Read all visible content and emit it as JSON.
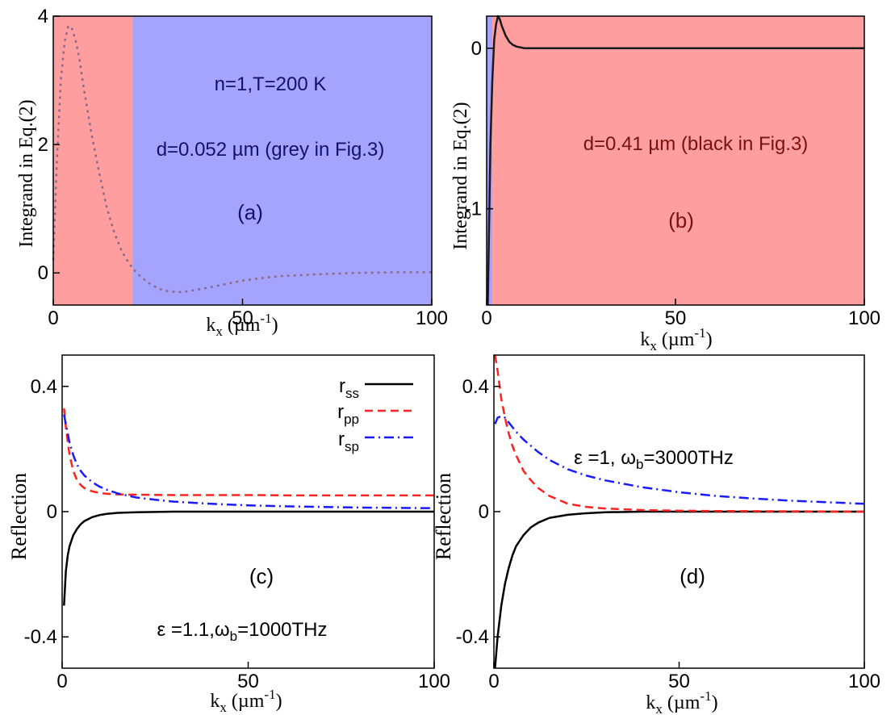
{
  "chart_data": [
    {
      "panel_label": "(a)",
      "type": "line",
      "xlabel_main": "k",
      "xlabel_sub": "x",
      "xlabel_unit": " (µm",
      "xlabel_exp": "-1",
      "xlabel_close": ")",
      "ylabel": "Integrand in Eq.(2)",
      "xlim": [
        0,
        100
      ],
      "ylim": [
        -0.5,
        4
      ],
      "xticks": [
        "0",
        "50",
        "100"
      ],
      "xtick_values": [
        0,
        50,
        100
      ],
      "yticks": [
        "0",
        "2",
        "4"
      ],
      "ytick_values": [
        0,
        2,
        4
      ],
      "annotations": [
        "n=1,T=200 K",
        "d=0.052 µm (grey in Fig.3)"
      ],
      "regions": [
        {
          "x_from": 0,
          "x_to": 21,
          "color": "#ff9e9e"
        },
        {
          "x_from": 21,
          "x_to": 100,
          "color": "#a4a4ff"
        }
      ],
      "series": [
        {
          "color": "#8a6a8a",
          "dash": "dotted",
          "x": [
            0,
            1,
            2,
            3,
            4,
            5,
            6,
            7,
            8,
            10,
            12,
            14,
            16,
            18,
            20,
            22,
            25,
            28,
            30,
            33,
            35,
            40,
            45,
            50,
            55,
            60,
            70,
            80,
            90,
            100
          ],
          "y": [
            0.2,
            1.8,
            3.0,
            3.6,
            3.85,
            3.8,
            3.6,
            3.3,
            2.9,
            2.2,
            1.6,
            1.05,
            0.65,
            0.35,
            0.15,
            0.0,
            -0.15,
            -0.25,
            -0.28,
            -0.3,
            -0.29,
            -0.24,
            -0.18,
            -0.12,
            -0.08,
            -0.05,
            -0.02,
            0.0,
            0.01,
            0.01
          ]
        }
      ]
    },
    {
      "panel_label": "(b)",
      "type": "line",
      "xlabel_main": "k",
      "xlabel_sub": "x",
      "xlabel_unit": " (µm",
      "xlabel_exp": "-1",
      "xlabel_close": ")",
      "ylabel": "Integrand in Eq.(2)",
      "xlim": [
        0,
        100
      ],
      "ylim": [
        -1.6,
        0.2
      ],
      "xticks": [
        "0",
        "50",
        "100"
      ],
      "xtick_values": [
        0,
        50,
        100
      ],
      "yticks": [
        "-1",
        "0"
      ],
      "ytick_values": [
        -1,
        0
      ],
      "annotations": [
        "d=0.41 µm (black in Fig.3)"
      ],
      "regions": [
        {
          "x_from": 0,
          "x_to": 1.5,
          "color": "#a4a4ff"
        },
        {
          "x_from": 1.5,
          "x_to": 100,
          "color": "#ff9e9e"
        }
      ],
      "series": [
        {
          "color": "#1a1a1a",
          "dash": "solid",
          "x": [
            0.3,
            1,
            1.5,
            2,
            2.5,
            3,
            3.5,
            4,
            5,
            6,
            7,
            8,
            9,
            10,
            12,
            15,
            20,
            30,
            50,
            70,
            100
          ],
          "y": [
            -1.6,
            -0.6,
            -0.2,
            0.05,
            0.15,
            0.2,
            0.18,
            0.14,
            0.08,
            0.04,
            0.02,
            0.01,
            0.005,
            0.0,
            0.0,
            0.0,
            0.0,
            0.0,
            0.0,
            0.0,
            0.0
          ]
        }
      ]
    },
    {
      "panel_label": "(c)",
      "type": "line",
      "xlabel_main": "k",
      "xlabel_sub": "x",
      "xlabel_unit": " (µm",
      "xlabel_exp": "-1",
      "xlabel_close": ")",
      "ylabel": "Reflection",
      "xlim": [
        0,
        100
      ],
      "ylim": [
        -0.5,
        0.5
      ],
      "xticks": [
        "0",
        "50",
        "100"
      ],
      "xtick_values": [
        0,
        50,
        100
      ],
      "yticks": [
        "-0.4",
        "0",
        "0.4"
      ],
      "ytick_values": [
        -0.4,
        0,
        0.4
      ],
      "annotation_eps": "ε =1.1,ω",
      "annotation_sub": "b",
      "annotation_rest": "=1000THz",
      "legend_position": "top-right",
      "series": [
        {
          "name_main": "r",
          "name_sub": "ss",
          "color": "#000000",
          "dash": "solid",
          "x": [
            0.5,
            1,
            1.5,
            2,
            3,
            4,
            5,
            6,
            8,
            10,
            12,
            15,
            20,
            25,
            30,
            40,
            50,
            60,
            80,
            100
          ],
          "y": [
            -0.3,
            -0.19,
            -0.14,
            -0.11,
            -0.075,
            -0.055,
            -0.04,
            -0.03,
            -0.018,
            -0.011,
            -0.007,
            -0.004,
            -0.002,
            -0.001,
            0.0,
            0.0,
            0.0,
            0.0,
            0.0,
            0.0
          ]
        },
        {
          "name_main": "r",
          "name_sub": "pp",
          "color": "#ff2020",
          "dash": "dashed",
          "x": [
            0.5,
            1,
            2,
            3,
            4,
            5,
            6,
            8,
            10,
            12,
            15,
            20,
            30,
            40,
            50,
            60,
            80,
            100
          ],
          "y": [
            0.33,
            0.27,
            0.18,
            0.13,
            0.1,
            0.085,
            0.075,
            0.065,
            0.06,
            0.057,
            0.055,
            0.054,
            0.053,
            0.053,
            0.053,
            0.052,
            0.052,
            0.052
          ]
        },
        {
          "name_main": "r",
          "name_sub": "sp",
          "color": "#1a1aff",
          "dash": "dashdot",
          "x": [
            0.5,
            1,
            2,
            3,
            4,
            5,
            6,
            8,
            10,
            12,
            15,
            20,
            25,
            30,
            40,
            50,
            60,
            70,
            80,
            90,
            100
          ],
          "y": [
            0.31,
            0.28,
            0.22,
            0.18,
            0.15,
            0.13,
            0.115,
            0.095,
            0.08,
            0.07,
            0.058,
            0.045,
            0.038,
            0.032,
            0.025,
            0.02,
            0.017,
            0.015,
            0.013,
            0.012,
            0.011
          ]
        }
      ]
    },
    {
      "panel_label": "(d)",
      "type": "line",
      "xlabel_main": "k",
      "xlabel_sub": "x",
      "xlabel_unit": " (µm",
      "xlabel_exp": "-1",
      "xlabel_close": ")",
      "ylabel": "Reflection",
      "xlim": [
        0,
        100
      ],
      "ylim": [
        -0.5,
        0.5
      ],
      "xticks": [
        "0",
        "50",
        "100"
      ],
      "xtick_values": [
        0,
        50,
        100
      ],
      "yticks": [
        "-0.4",
        "0",
        "0.4"
      ],
      "ytick_values": [
        -0.4,
        0,
        0.4
      ],
      "annotation_eps": "ε =1, ω",
      "annotation_sub": "b",
      "annotation_rest": "=3000THz",
      "series": [
        {
          "color": "#000000",
          "dash": "solid",
          "x": [
            0.3,
            1,
            2,
            3,
            4,
            5,
            6,
            8,
            10,
            12,
            15,
            20,
            25,
            30,
            40,
            50,
            60,
            80,
            100
          ],
          "y": [
            -0.5,
            -0.4,
            -0.3,
            -0.23,
            -0.18,
            -0.14,
            -0.11,
            -0.075,
            -0.05,
            -0.035,
            -0.02,
            -0.01,
            -0.005,
            -0.002,
            0.0,
            0.0,
            0.0,
            0.0,
            0.0
          ]
        },
        {
          "color": "#ff2020",
          "dash": "dashed",
          "x": [
            0.3,
            1,
            2,
            3,
            4,
            5,
            6,
            8,
            10,
            12,
            15,
            20,
            25,
            30,
            40,
            50,
            60,
            80,
            100
          ],
          "y": [
            0.52,
            0.45,
            0.36,
            0.3,
            0.25,
            0.21,
            0.18,
            0.13,
            0.1,
            0.075,
            0.05,
            0.025,
            0.015,
            0.01,
            0.005,
            0.003,
            0.002,
            0.001,
            0.0
          ]
        },
        {
          "color": "#1a1aff",
          "dash": "dashdot",
          "x": [
            0.3,
            1,
            2,
            3,
            4,
            5,
            6,
            8,
            10,
            12,
            15,
            20,
            25,
            30,
            40,
            50,
            60,
            70,
            80,
            90,
            100
          ],
          "y": [
            0.28,
            0.3,
            0.305,
            0.3,
            0.285,
            0.27,
            0.255,
            0.23,
            0.21,
            0.19,
            0.165,
            0.135,
            0.115,
            0.1,
            0.078,
            0.062,
            0.05,
            0.042,
            0.035,
            0.03,
            0.025
          ]
        }
      ]
    }
  ]
}
